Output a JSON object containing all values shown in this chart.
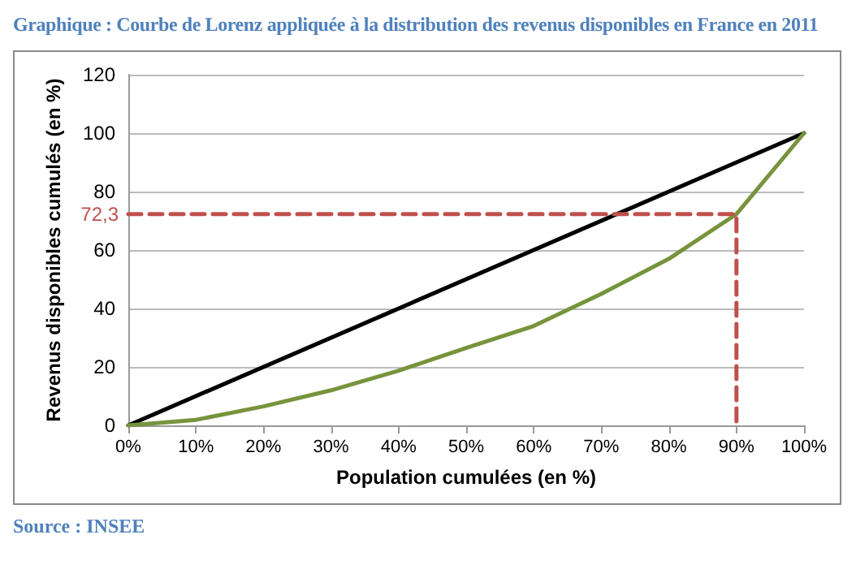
{
  "chart_data": {
    "type": "line",
    "title": "Graphique : Courbe de Lorenz appliquée à la distribution des revenus disponibles en France en 2011",
    "xlabel": "Population cumulées (en %)",
    "ylabel": "Revenus disponibles cumulés (en %)",
    "series": [
      {
        "x": [
          0,
          100
        ],
        "values": [
          0,
          100
        ],
        "color": "#000000"
      },
      {
        "x": [
          0,
          10,
          20,
          30,
          40,
          50,
          60,
          70,
          80,
          90,
          100
        ],
        "values": [
          0,
          1.9,
          6.5,
          12,
          18.7,
          26.5,
          34,
          45,
          57,
          72.3,
          100
        ],
        "color": "#77933c"
      },
      {
        "x": [
          0,
          90,
          90
        ],
        "values": [
          72.3,
          72.3,
          0
        ],
        "color": "#c0504d",
        "line_style": "dashed"
      }
    ],
    "annotations": [
      {
        "text": "72,3",
        "x": 0,
        "y": 72.3
      },
      "Source : INSEE"
    ],
    "xlim": [
      0,
      100
    ],
    "ylim": [
      0,
      120
    ],
    "xticks": [
      {
        "value": 0,
        "label": "0%"
      },
      {
        "value": 10,
        "label": "10%"
      },
      {
        "value": 20,
        "label": "20%"
      },
      {
        "value": 30,
        "label": "30%"
      },
      {
        "value": 40,
        "label": "40%"
      },
      {
        "value": 50,
        "label": "50%"
      },
      {
        "value": 60,
        "label": "60%"
      },
      {
        "value": 70,
        "label": "70%"
      },
      {
        "value": 80,
        "label": "80%"
      },
      {
        "value": 90,
        "label": "90%"
      },
      {
        "value": 100,
        "label": "100%"
      }
    ],
    "yticks": [
      0,
      20,
      40,
      60,
      80,
      100,
      120
    ],
    "grid": "y",
    "marker": "none",
    "line_style": "solid"
  }
}
